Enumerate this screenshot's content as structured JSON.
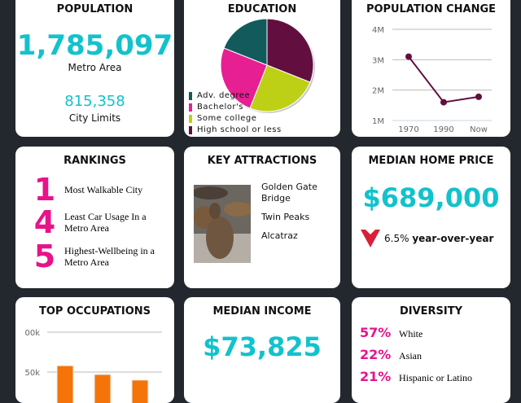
{
  "population": {
    "title": "POPULATION",
    "metro_value": "1,785,097",
    "metro_label": "Metro Area",
    "city_value": "815,358",
    "city_label": "City Limits"
  },
  "education": {
    "title": "EDUCATION",
    "chart_data": {
      "type": "pie",
      "slices": [
        {
          "name": "High school or less",
          "value": 31,
          "color": "#620f3f"
        },
        {
          "name": "Some college",
          "value": 25,
          "color": "#bdd016"
        },
        {
          "name": "Bachelor's",
          "value": 25,
          "color": "#e61f93"
        },
        {
          "name": "Adv. degree",
          "value": 19,
          "color": "#125a5c"
        }
      ],
      "legend_order": [
        "Adv. degree",
        "Bachelor's",
        "Some college",
        "High school or less"
      ],
      "legend": "bottom-left"
    }
  },
  "population_change": {
    "title": "POPULATION CHANGE",
    "chart_data": {
      "type": "line",
      "categories": [
        "1970",
        "1990",
        "Now"
      ],
      "values": [
        3.1,
        1.6,
        1.78
      ],
      "unit": "M",
      "ylim": [
        1,
        4
      ],
      "yticks": [
        "1M",
        "2M",
        "3M",
        "4M"
      ],
      "grid": true,
      "color": "#620f3f"
    }
  },
  "rankings": {
    "title": "RANKINGS",
    "items": [
      {
        "rank": "1",
        "label": "Most Walkable City"
      },
      {
        "rank": "4",
        "label": "Least Car Usage In a Metro Area"
      },
      {
        "rank": "5",
        "label": "Highest-Wellbeing in a Metro Area"
      }
    ]
  },
  "attractions": {
    "title": "KEY ATTRACTIONS",
    "items": [
      "Golden Gate Bridge",
      "Twin Peaks",
      "Alcatraz"
    ],
    "image": "sea-lion-photo"
  },
  "home_price": {
    "title": "MEDIAN HOME PRICE",
    "value": "$689,000",
    "change": "6.5%",
    "change_label": "year-over-year",
    "trend": "down"
  },
  "occupations": {
    "title": "TOP OCCUPATIONS",
    "chart_data": {
      "type": "bar",
      "values": [
        58,
        47,
        40
      ],
      "unit": "k",
      "yticks": [
        "00k",
        "50k"
      ],
      "grid": true,
      "color": "#f5740a"
    }
  },
  "income": {
    "title": "MEDIAN INCOME",
    "value": "$73,825"
  },
  "diversity": {
    "title": "DIVERSITY",
    "items": [
      {
        "pct": "57%",
        "label": "White"
      },
      {
        "pct": "22%",
        "label": "Asian"
      },
      {
        "pct": "21%",
        "label": "Hispanic or Latino"
      }
    ]
  }
}
